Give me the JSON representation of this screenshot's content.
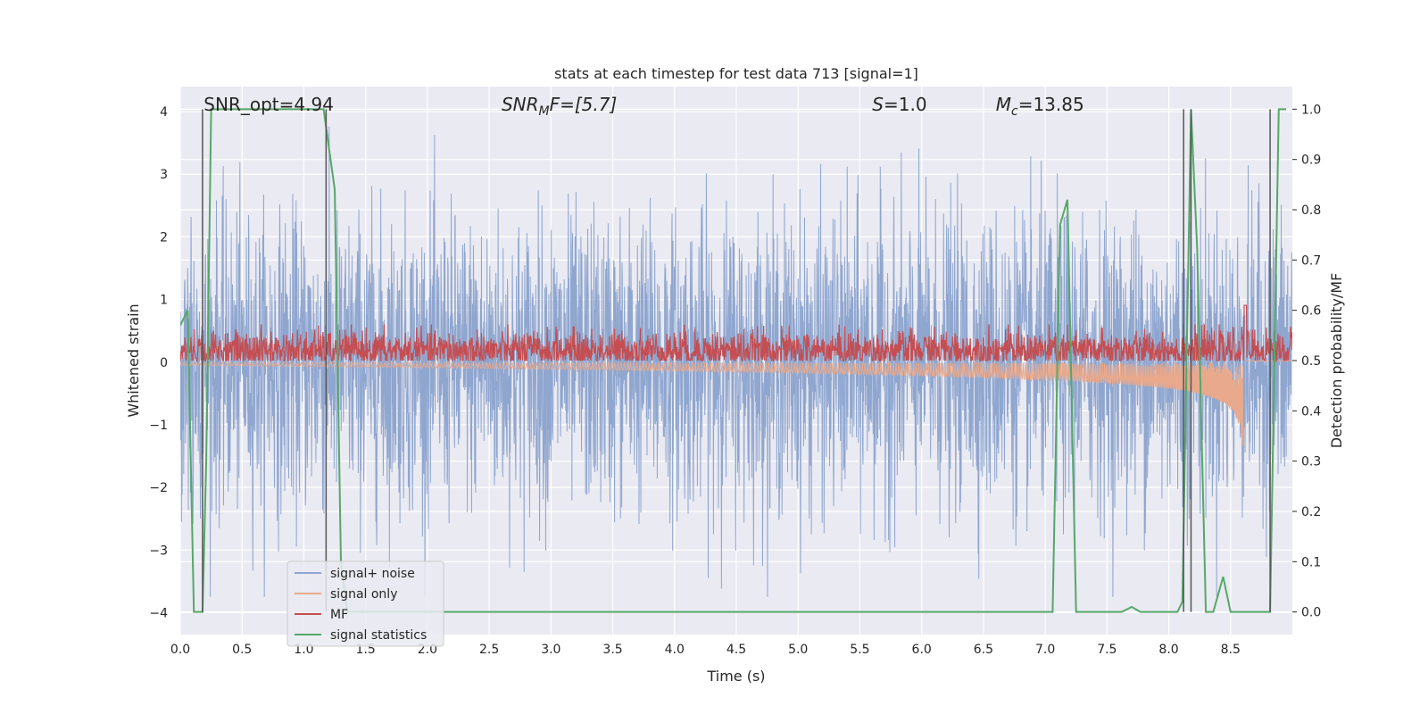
{
  "chart_data": {
    "type": "line",
    "title": "stats at each timestep for test data 713 [signal=1]",
    "xlabel": "Time (s)",
    "ylabel": "Whitened strain",
    "y2label": "Detection probability/MF",
    "xlim": [
      0,
      9
    ],
    "ylim": [
      -4.35,
      4.4
    ],
    "y2lim": [
      -0.045,
      1.045
    ],
    "x_ticks": [
      "0.0",
      "0.5",
      "1.0",
      "1.5",
      "2.0",
      "2.5",
      "3.0",
      "3.5",
      "4.0",
      "4.5",
      "5.0",
      "5.5",
      "6.0",
      "6.5",
      "7.0",
      "7.5",
      "8.0",
      "8.5"
    ],
    "y_ticks": [
      "4",
      "3",
      "2",
      "1",
      "0",
      "−1",
      "−2",
      "−3",
      "−4"
    ],
    "y2_ticks": [
      "1.0",
      "0.9",
      "0.8",
      "0.7",
      "0.6",
      "0.5",
      "0.4",
      "0.3",
      "0.2",
      "0.1",
      "0.0"
    ],
    "annotations": [
      {
        "prefix": "SNR_opt=4.94",
        "sub": "",
        "suffix": "",
        "x": 0.19
      },
      {
        "prefix": "SNR",
        "sub": "M",
        "suffix": "F=[5.7]",
        "x": 2.6
      },
      {
        "prefix": "S",
        "sub": "",
        "suffix": "=1.0",
        "x": 5.6
      },
      {
        "prefix": "M",
        "sub": "c",
        "suffix": "=13.85",
        "x": 6.6
      }
    ],
    "vlines": [
      0.18,
      1.18,
      8.12,
      8.18,
      8.82
    ],
    "legend_position": "lower-left",
    "grid": true,
    "series": [
      {
        "name": "signal+ noise",
        "color": "#8fa6cf",
        "axis": "left",
        "description": "noise band roughly between -3.5 and 3.8",
        "amplitude_std": 1.15
      },
      {
        "name": "signal only",
        "color": "#e8a98c",
        "axis": "left",
        "chirp": {
          "start": 0.0,
          "merger": 8.62,
          "end_amplitude": -1.05
        }
      },
      {
        "name": "MF",
        "color": "#c44e52",
        "axis": "right",
        "baseline": 0.52,
        "peak": {
          "x": 8.62,
          "y": 0.61
        }
      },
      {
        "name": "signal statistics",
        "color": "#55a868",
        "axis": "right",
        "x": [
          0.0,
          0.06,
          0.11,
          0.18,
          0.21,
          0.25,
          1.16,
          1.25,
          1.3,
          1.35,
          7.06,
          7.12,
          7.18,
          7.25,
          7.62,
          7.7,
          7.77,
          8.07,
          8.11,
          8.18,
          8.23,
          8.3,
          8.36,
          8.44,
          8.5,
          8.82,
          8.89,
          8.95
        ],
        "y": [
          0.57,
          0.6,
          0.0,
          0.0,
          0.3,
          1.0,
          1.0,
          0.84,
          0.1,
          0.0,
          0.0,
          0.77,
          0.82,
          0.0,
          0.0,
          0.01,
          0.0,
          0.0,
          0.02,
          1.0,
          0.72,
          0.0,
          0.0,
          0.07,
          0.0,
          0.0,
          1.0,
          1.0
        ]
      }
    ]
  }
}
